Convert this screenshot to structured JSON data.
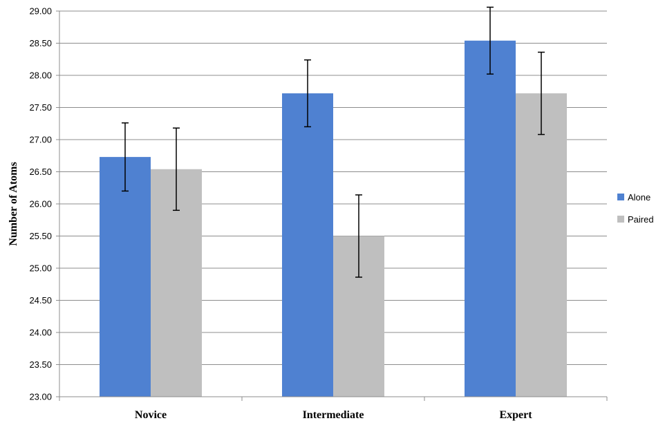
{
  "chart_data": {
    "type": "bar",
    "title": "",
    "xlabel": "",
    "ylabel": "Number of Atoms",
    "ylim": [
      23.0,
      29.0
    ],
    "ytick_step": 0.5,
    "ytick_labels": [
      "23.00",
      "23.50",
      "24.00",
      "24.50",
      "25.00",
      "25.50",
      "26.00",
      "26.50",
      "27.00",
      "27.50",
      "28.00",
      "28.50",
      "29.00"
    ],
    "grid": true,
    "legend_position": "right",
    "categories": [
      "Novice",
      "Intermediate",
      "Expert"
    ],
    "series": [
      {
        "name": "Alone",
        "color": "#4f81d1",
        "values": [
          26.73,
          27.72,
          28.54
        ],
        "error": [
          0.53,
          0.52,
          0.52
        ]
      },
      {
        "name": "Paired",
        "color": "#bfbfbf",
        "values": [
          26.54,
          25.5,
          27.72
        ],
        "error": [
          0.64,
          0.64,
          0.64
        ]
      }
    ]
  }
}
